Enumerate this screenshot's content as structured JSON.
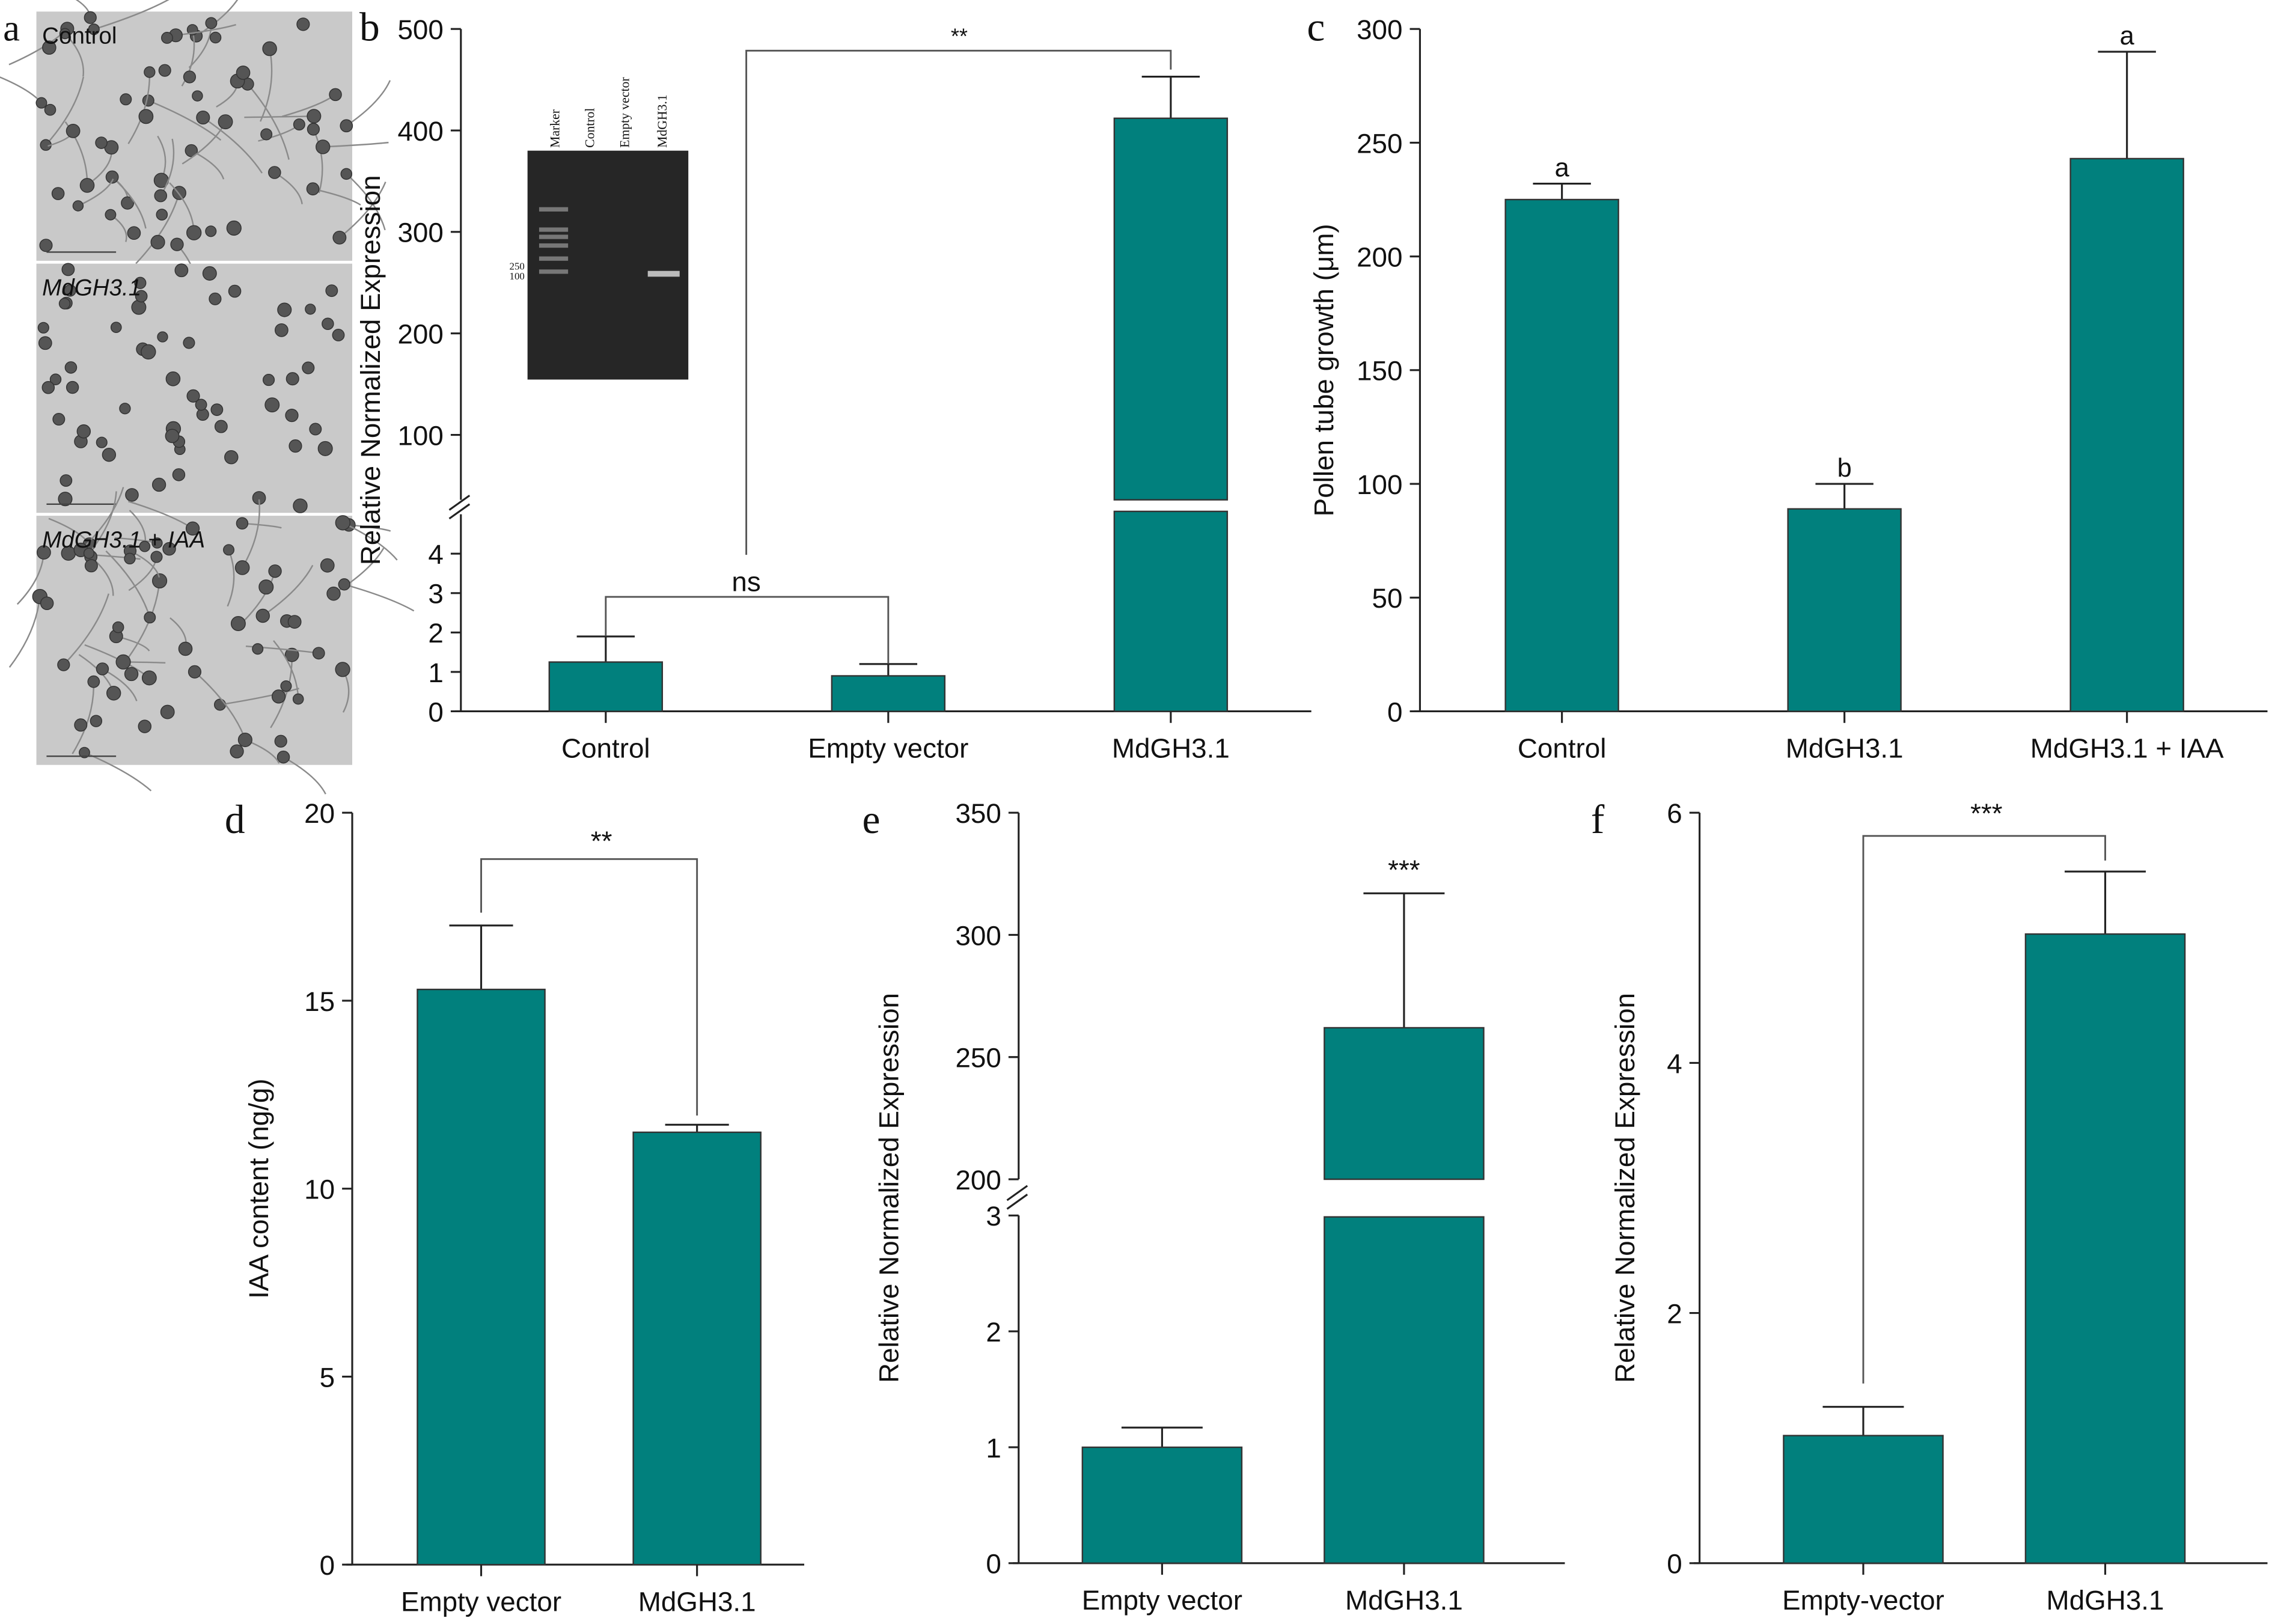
{
  "bar_color": "#01807d",
  "panel_a": {
    "letter": "a",
    "images": [
      {
        "label": "Control",
        "italic": false
      },
      {
        "label": "MdGH3.1",
        "italic": true
      },
      {
        "label": "MdGH3.1 + IAA",
        "italic": true
      }
    ]
  },
  "gel_inset": {
    "lanes": [
      "Marker",
      "Control",
      "Empty vector",
      "MdGH3.1"
    ],
    "marker_labels": [
      "250",
      "100"
    ]
  },
  "chart_data": [
    {
      "panel": "b",
      "type": "bar",
      "broken_axis": true,
      "categories": [
        "Control",
        "Empty vector",
        "MdGH3.1"
      ],
      "values": [
        1.25,
        0.9,
        412
      ],
      "error_upper": [
        1.9,
        1.2,
        453
      ],
      "ylabel": "Relative Normalized Expression",
      "ylim_lower": [
        0,
        5
      ],
      "yticks_lower": [
        0,
        1,
        2,
        3,
        4
      ],
      "ylim_upper": [
        36,
        500
      ],
      "yticks_upper": [
        100,
        200,
        300,
        400,
        500
      ],
      "annotations": [
        {
          "text": "ns",
          "between": [
            "Control",
            "Empty vector"
          ]
        },
        {
          "text": "**",
          "between": [
            "Empty vector",
            "MdGH3.1"
          ]
        }
      ]
    },
    {
      "panel": "c",
      "type": "bar",
      "categories": [
        "Control",
        "MdGH3.1",
        "MdGH3.1 + IAA"
      ],
      "values": [
        225,
        89,
        243
      ],
      "error_upper": [
        232,
        100,
        290
      ],
      "letters": [
        "a",
        "b",
        "a"
      ],
      "ylabel": "Pollen tube growth (μm)",
      "ylim": [
        0,
        300
      ],
      "yticks": [
        0,
        50,
        100,
        150,
        200,
        250,
        300
      ]
    },
    {
      "panel": "d",
      "type": "bar",
      "categories": [
        "Empty vector",
        "MdGH3.1"
      ],
      "values": [
        15.3,
        11.5
      ],
      "error_upper": [
        17.0,
        11.7
      ],
      "ylabel": "IAA content (ng/g)",
      "ylim": [
        0,
        20
      ],
      "yticks": [
        0,
        5,
        10,
        15,
        20
      ],
      "annotations": [
        {
          "text": "**",
          "between": [
            "Empty vector",
            "MdGH3.1"
          ]
        }
      ]
    },
    {
      "panel": "e",
      "type": "bar",
      "broken_axis": true,
      "categories": [
        "Empty vector",
        "MdGH3.1"
      ],
      "values": [
        1.0,
        262
      ],
      "error_upper": [
        1.17,
        317
      ],
      "ylabel": "Relative Normalized Expression",
      "ylim_lower": [
        0,
        3
      ],
      "yticks_lower": [
        0,
        1,
        2,
        3
      ],
      "ylim_upper": [
        200,
        350
      ],
      "yticks_upper": [
        200,
        250,
        300,
        350
      ],
      "annotations": [
        {
          "text": "***",
          "over": "MdGH3.1"
        }
      ]
    },
    {
      "panel": "f",
      "type": "bar",
      "categories": [
        "Empty-vector",
        "MdGH3.1"
      ],
      "values": [
        1.02,
        5.03
      ],
      "error_upper": [
        1.25,
        5.53
      ],
      "ylabel": "Relative Normalized Expression",
      "ylim": [
        0,
        6
      ],
      "yticks": [
        0,
        2,
        4,
        6
      ],
      "annotations": [
        {
          "text": "***",
          "between": [
            "Empty-vector",
            "MdGH3.1"
          ]
        }
      ]
    }
  ]
}
